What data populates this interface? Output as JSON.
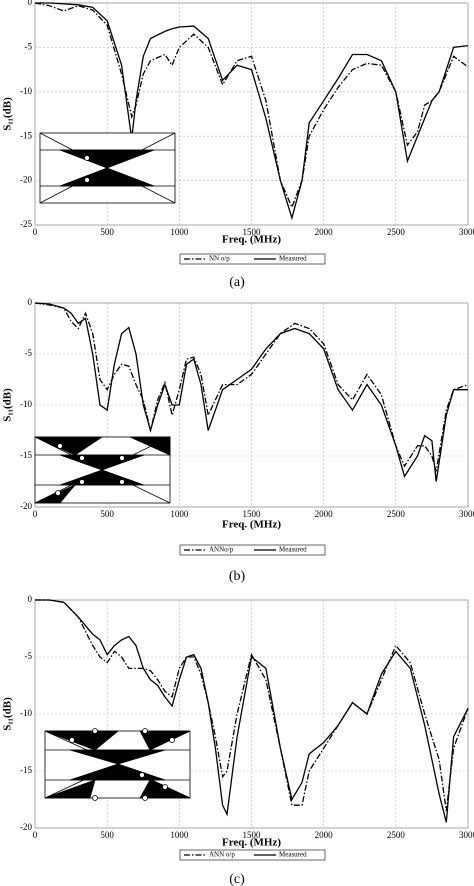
{
  "chart_data": [
    {
      "type": "line",
      "caption": "(a)",
      "x_label": "Freq. (MHz)",
      "y_label": "S₁₁(dB)",
      "x": [
        0,
        100,
        200,
        300,
        400,
        500,
        600,
        670,
        700,
        750,
        800,
        900,
        950,
        1000,
        1100,
        1200,
        1300,
        1400,
        1500,
        1600,
        1700,
        1780,
        1850,
        1900,
        2000,
        2100,
        2200,
        2300,
        2400,
        2500,
        2580,
        2650,
        2700,
        2750,
        2800,
        2900,
        3000
      ],
      "series": [
        {
          "name": "NN o/p",
          "color": "#000000",
          "style": "dash-dot",
          "values": [
            0,
            -0.3,
            -0.9,
            -0.3,
            -0.8,
            -2.5,
            -8,
            -12.8,
            -11.5,
            -8,
            -6.5,
            -5.8,
            -7,
            -5,
            -3.5,
            -5,
            -9.2,
            -6.5,
            -6,
            -11,
            -20,
            -23,
            -20,
            -15,
            -12,
            -9.5,
            -7.5,
            -6.8,
            -7,
            -10,
            -16,
            -14.5,
            -11.5,
            -11,
            -10,
            -6,
            -7.2
          ]
        },
        {
          "name": "Measured",
          "color": "#000000",
          "style": "solid",
          "values": [
            0,
            0,
            -0.1,
            -0.2,
            -0.5,
            -2,
            -7,
            -15.3,
            -11,
            -6,
            -4,
            -3.2,
            -2.9,
            -2.7,
            -2.6,
            -4,
            -8.7,
            -7,
            -7.5,
            -13,
            -20,
            -24.2,
            -20,
            -13.5,
            -11,
            -8.5,
            -5.8,
            -5.8,
            -6.5,
            -10,
            -17.8,
            -15,
            -13,
            -11,
            -10,
            -5,
            -4.8
          ]
        }
      ],
      "xlim": [
        0,
        3000
      ],
      "xticks": [
        0,
        500,
        1000,
        1500,
        2000,
        2500,
        3000
      ],
      "ylim": [
        -25,
        0
      ],
      "yticks": [
        0,
        -5,
        -10,
        -15,
        -20,
        -25
      ],
      "grid": true
    },
    {
      "type": "line",
      "caption": "(b)",
      "x_label": "Freq. (MHz)",
      "y_label": "S₁₁(dB)",
      "x": [
        0,
        100,
        200,
        250,
        300,
        350,
        400,
        450,
        500,
        550,
        600,
        650,
        700,
        750,
        800,
        850,
        900,
        950,
        1000,
        1050,
        1100,
        1150,
        1200,
        1300,
        1400,
        1500,
        1600,
        1700,
        1800,
        1900,
        2000,
        2100,
        2200,
        2300,
        2400,
        2500,
        2560,
        2650,
        2700,
        2750,
        2780,
        2850,
        2900,
        3000
      ],
      "series": [
        {
          "name": "ANNo/p",
          "color": "#000000",
          "style": "dash-dot",
          "values": [
            0,
            -0.2,
            -0.5,
            -1.8,
            -2.5,
            -1,
            -3,
            -7.5,
            -8.5,
            -7,
            -6,
            -6.2,
            -8,
            -9.5,
            -12.5,
            -9.5,
            -7.8,
            -11,
            -8.5,
            -5.5,
            -5.3,
            -7,
            -11,
            -8,
            -8,
            -7,
            -5,
            -3,
            -2,
            -2.5,
            -4,
            -8,
            -9.5,
            -7,
            -9,
            -14,
            -16,
            -14,
            -14,
            -15,
            -16.5,
            -10.5,
            -8.5,
            -8
          ]
        },
        {
          "name": "Measured",
          "color": "#000000",
          "style": "solid",
          "values": [
            0,
            -0.1,
            -0.5,
            -1,
            -2,
            -1.5,
            -5,
            -10,
            -10.5,
            -6,
            -3,
            -2.4,
            -5,
            -10,
            -12.5,
            -10,
            -8,
            -10,
            -10,
            -6,
            -5.5,
            -8,
            -12.5,
            -8.5,
            -7.5,
            -6.5,
            -4.5,
            -3,
            -2.5,
            -3,
            -4.5,
            -8.5,
            -10.5,
            -8,
            -10,
            -14,
            -17,
            -15,
            -13,
            -13.5,
            -17.5,
            -11,
            -8.5,
            -8.5
          ]
        }
      ],
      "xlim": [
        0,
        3000
      ],
      "xticks": [
        0,
        500,
        1000,
        1500,
        2000,
        2500,
        3000
      ],
      "ylim": [
        -20,
        0
      ],
      "yticks": [
        0,
        -5,
        -10,
        -15,
        -20
      ],
      "grid": true
    },
    {
      "type": "line",
      "caption": "(c)",
      "x_label": "Freq. (MHz)",
      "y_label": "S₁₁(dB)",
      "x": [
        0,
        100,
        200,
        300,
        400,
        450,
        500,
        550,
        600,
        650,
        700,
        750,
        800,
        850,
        900,
        950,
        1000,
        1050,
        1100,
        1150,
        1200,
        1250,
        1300,
        1330,
        1400,
        1500,
        1600,
        1700,
        1780,
        1850,
        1900,
        2000,
        2100,
        2200,
        2300,
        2400,
        2500,
        2600,
        2700,
        2800,
        2850,
        2900,
        3000
      ],
      "series": [
        {
          "name": "ANN o/p",
          "color": "#000000",
          "style": "dash-dot",
          "values": [
            0,
            0,
            -0.2,
            -1.5,
            -4,
            -5,
            -5.5,
            -4.5,
            -5,
            -6,
            -6,
            -6,
            -6.2,
            -7,
            -8,
            -8.5,
            -6,
            -5,
            -5,
            -6.5,
            -9,
            -12,
            -15.5,
            -15,
            -10,
            -4.8,
            -7,
            -13,
            -18,
            -18,
            -15,
            -13,
            -11,
            -9,
            -10,
            -7,
            -4,
            -5.5,
            -10,
            -14,
            -18.5,
            -13,
            -9.5
          ]
        },
        {
          "name": "Measured",
          "color": "#000000",
          "style": "solid",
          "values": [
            0,
            0,
            -0.2,
            -1.5,
            -3,
            -3.5,
            -4.8,
            -4,
            -3.5,
            -3.2,
            -4,
            -6,
            -7,
            -7.5,
            -8.5,
            -9.3,
            -7,
            -5,
            -4.8,
            -6,
            -9,
            -13,
            -18,
            -18.8,
            -12,
            -5,
            -6,
            -13,
            -17.5,
            -16,
            -13.5,
            -12.5,
            -11,
            -9,
            -10,
            -6.5,
            -4.5,
            -6,
            -11,
            -17,
            -19.5,
            -12,
            -9.5
          ]
        }
      ],
      "xlim": [
        0,
        3000
      ],
      "xticks": [
        0,
        500,
        1000,
        1500,
        2000,
        2500,
        3000
      ],
      "ylim": [
        -20,
        0
      ],
      "yticks": [
        0,
        -5,
        -10,
        -15,
        -20
      ],
      "grid": true
    }
  ]
}
